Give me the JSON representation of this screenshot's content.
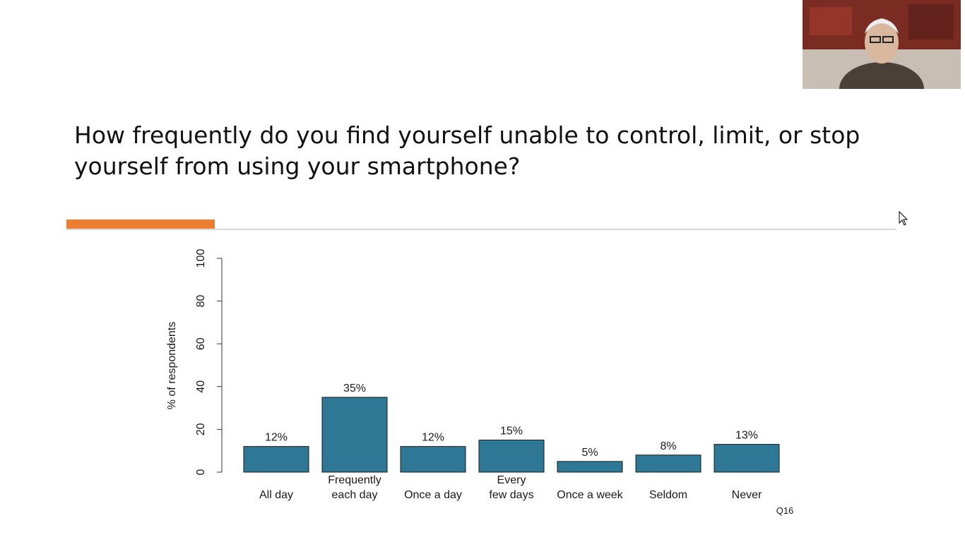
{
  "slide": {
    "title": "How frequently do you find yourself unable to control, limit, or stop yourself from using your smartphone?",
    "accent_color": "#ed7d31"
  },
  "webcam": {
    "icon": "presenter-webcam"
  },
  "chart_data": {
    "type": "bar",
    "categories": [
      [
        "All day"
      ],
      [
        "Frequently",
        "each day"
      ],
      [
        "Once a day"
      ],
      [
        "Every",
        "few days"
      ],
      [
        "Once a week"
      ],
      [
        "Seldom"
      ],
      [
        "Never"
      ]
    ],
    "values": [
      12,
      35,
      12,
      15,
      5,
      8,
      13
    ],
    "value_labels": [
      "12%",
      "35%",
      "12%",
      "15%",
      "5%",
      "8%",
      "13%"
    ],
    "ylabel": "% of respondents",
    "ylim": [
      0,
      100
    ],
    "yticks": [
      0,
      20,
      40,
      60,
      80,
      100
    ],
    "bar_color": "#2e7896",
    "grid": false,
    "note": "Q16"
  }
}
